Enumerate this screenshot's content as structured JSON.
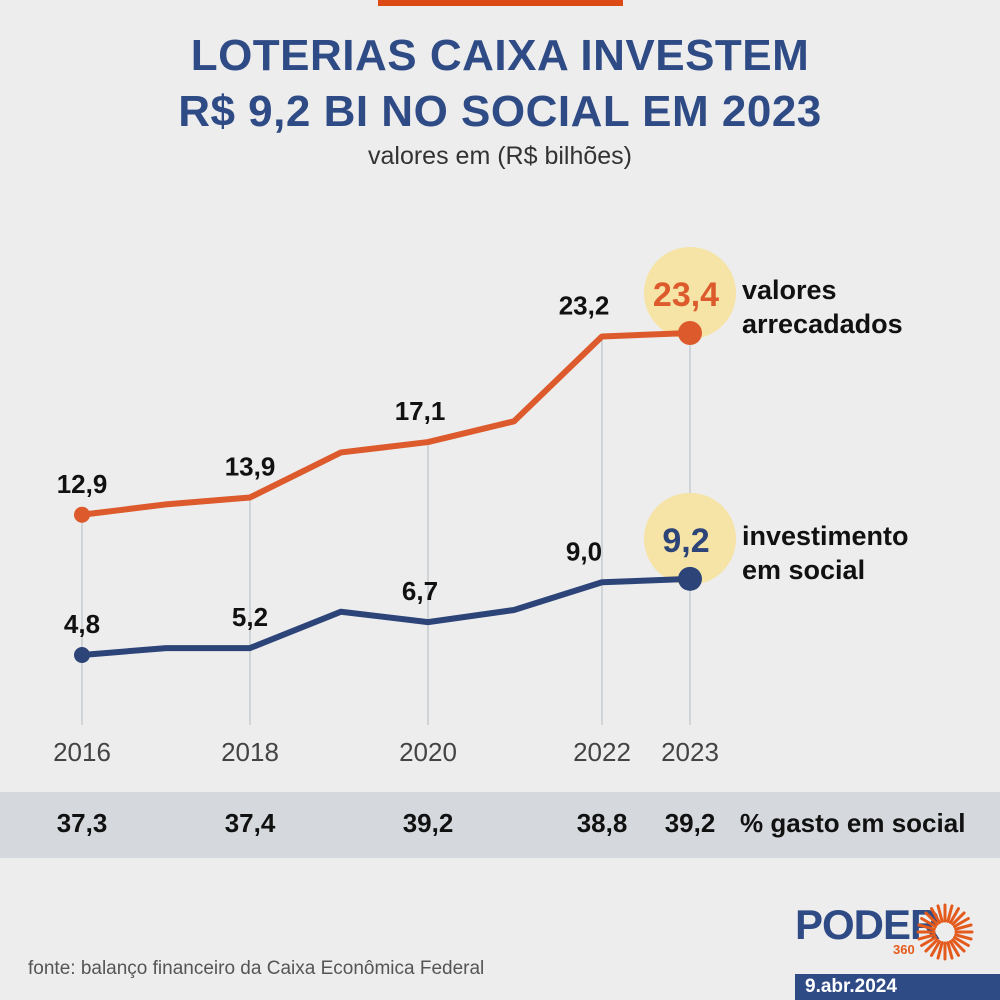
{
  "header": {
    "title_line1": "LOTERIAS CAIXA INVESTEM",
    "title_line2": "R$ 9,2 BI NO SOCIAL EM 2023",
    "subtitle": "valores em (R$ bilhões)"
  },
  "chart_data": {
    "type": "line",
    "title": "LOTERIAS CAIXA INVESTEM R$ 9,2 BI NO SOCIAL EM 2023",
    "subtitle": "valores em (R$ bilhões)",
    "x": [
      2016,
      2017,
      2018,
      2019,
      2020,
      2021,
      2022,
      2023
    ],
    "tick_labels": [
      "2016",
      "2018",
      "2020",
      "2022",
      "2023"
    ],
    "series": [
      {
        "name": "valores arrecadados",
        "label_line1": "valores",
        "label_line2": "arrecadados",
        "color": "#dc5a2c",
        "values": [
          12.9,
          13.5,
          13.9,
          16.5,
          17.1,
          18.3,
          23.2,
          23.4
        ],
        "labels": [
          "12,9",
          null,
          "13,9",
          null,
          "17,1",
          null,
          "23,2",
          "23,4"
        ]
      },
      {
        "name": "investimento em social",
        "label_line1": "investimento",
        "label_line2": "em social",
        "color": "#2c4478",
        "values": [
          4.8,
          5.2,
          5.2,
          7.3,
          6.7,
          7.4,
          9.0,
          9.2
        ],
        "labels": [
          "4,8",
          null,
          "5,2",
          null,
          "6,7",
          null,
          "9,0",
          "9,2"
        ]
      }
    ],
    "xlabel": "",
    "ylabel": "R$ bilhões",
    "grid": "vertical lines at labeled years"
  },
  "percent_row": {
    "values": [
      "37,3",
      "37,4",
      "39,2",
      "38,8",
      "39,2"
    ],
    "label": "% gasto em social"
  },
  "footer": {
    "source": "fonte: balanço financeiro da Caixa Econômica Federal",
    "logo_text": "PODER",
    "logo_sub": "360",
    "date": "9.abr.2024"
  },
  "colors": {
    "navy": "#2f4b85",
    "orange": "#dc4a16",
    "highlight": "#f6e3a6"
  }
}
